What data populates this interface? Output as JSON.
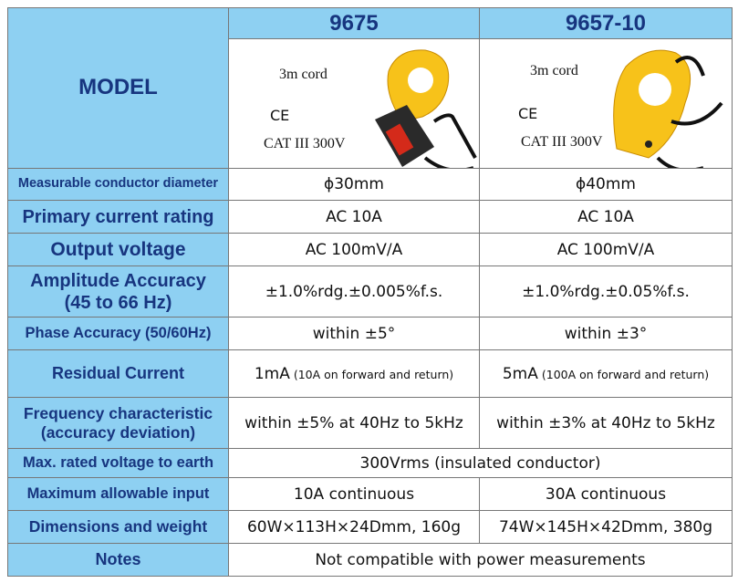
{
  "table": {
    "header": {
      "label": "MODEL",
      "models": [
        "9675",
        "9657-10"
      ]
    },
    "images": [
      {
        "cord": "3m cord",
        "mark": "CE",
        "category": "CAT III 300V"
      },
      {
        "cord": "3m cord",
        "mark": "CE",
        "category": "CAT III 300V"
      }
    ],
    "rows": [
      {
        "label": [
          "Measurable conductor diameter"
        ],
        "values": [
          [
            "ϕ30mm"
          ],
          [
            "ϕ40mm"
          ]
        ]
      },
      {
        "label": [
          "Primary current rating"
        ],
        "values": [
          [
            "AC 10A"
          ],
          [
            "AC 10A"
          ]
        ]
      },
      {
        "label": [
          "Output voltage"
        ],
        "values": [
          [
            "AC 100mV/A"
          ],
          [
            "AC 100mV/A"
          ]
        ]
      },
      {
        "label": [
          "Amplitude Accuracy",
          "(45 to 66 Hz)"
        ],
        "values": [
          [
            "±1.0%rdg.±0.005%f.s."
          ],
          [
            "±1.0%rdg.±0.05%f.s."
          ]
        ]
      },
      {
        "label": [
          "Phase Accuracy (50/60Hz)"
        ],
        "values": [
          [
            "within ±5°"
          ],
          [
            "within ±3°"
          ]
        ]
      },
      {
        "label": [
          "Residual Current"
        ],
        "values": [
          [
            "1mA",
            "(10A on forward and return)"
          ],
          [
            "5mA",
            "(100A on forward and return)"
          ]
        ]
      },
      {
        "label": [
          "Frequency characteristic",
          "(accuracy deviation)"
        ],
        "values": [
          [
            "within ±5% at 40Hz to 5kHz"
          ],
          [
            "within ±3% at 40Hz to 5kHz"
          ]
        ]
      },
      {
        "label": [
          "Max. rated voltage to earth"
        ],
        "values": [
          [
            "300Vrms (insulated conductor)"
          ]
        ]
      },
      {
        "label": [
          "Maximum allowable input"
        ],
        "values": [
          [
            "10A continuous"
          ],
          [
            "30A continuous"
          ]
        ]
      },
      {
        "label": [
          "Dimensions and weight"
        ],
        "values": [
          [
            "60W×113H×24Dmm, 160g"
          ],
          [
            "74W×145H×42Dmm, 380g"
          ]
        ]
      },
      {
        "label": [
          "Notes"
        ],
        "values": [
          [
            "Not compatible with power measurements"
          ]
        ]
      }
    ]
  }
}
